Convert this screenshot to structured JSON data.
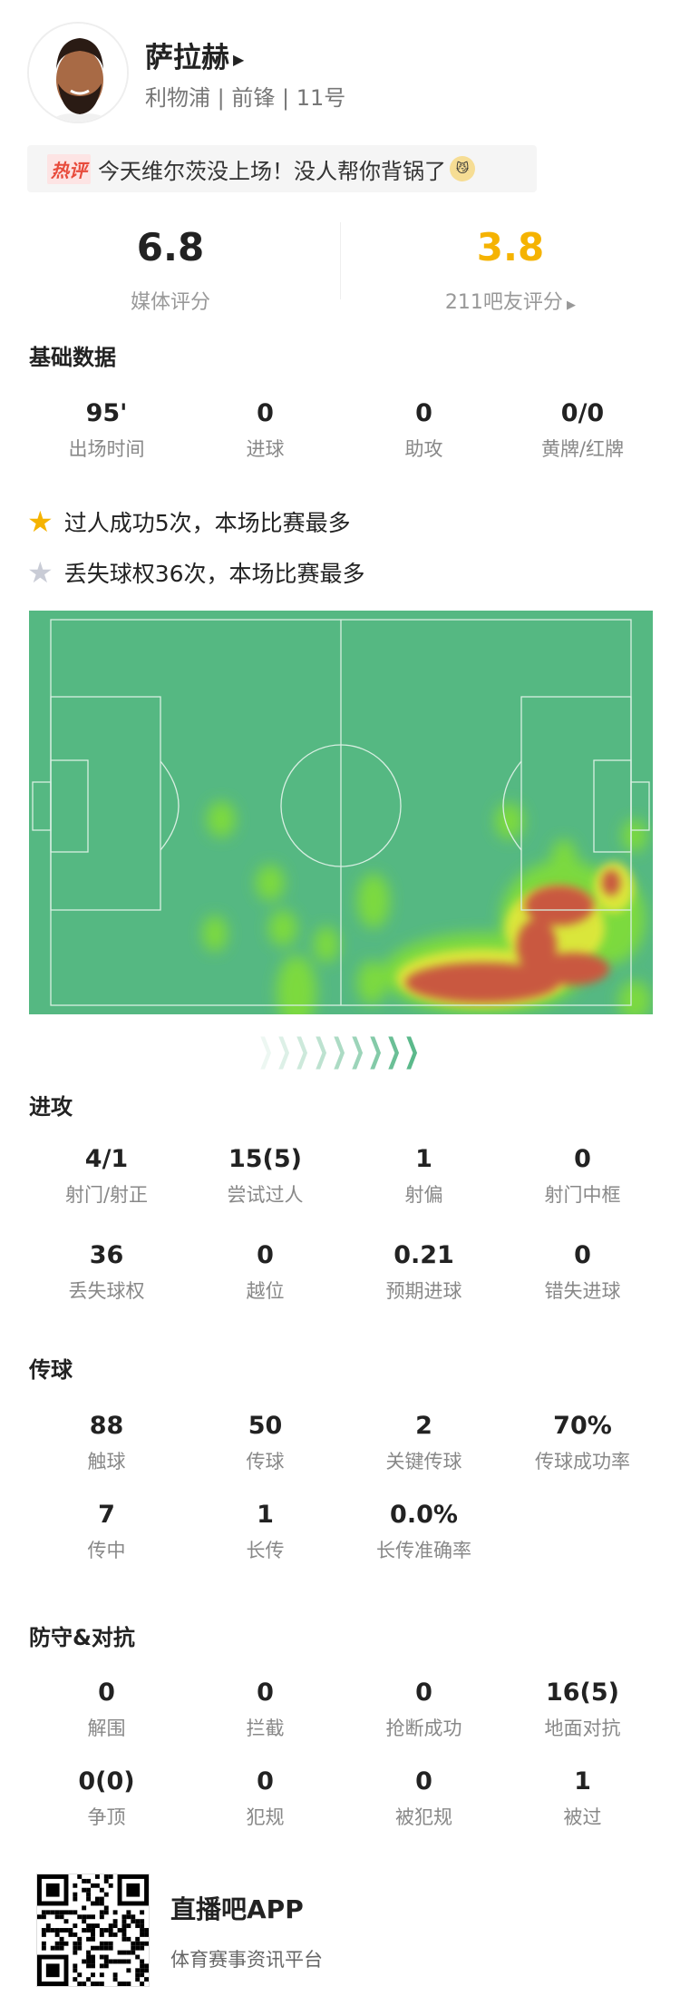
{
  "player": {
    "name": "萨拉赫",
    "team": "利物浦",
    "position": "前锋",
    "number": "11号"
  },
  "hot_comment": {
    "tag": "热评",
    "text": "今天维尔茨没上场！没人帮你背锅了"
  },
  "ratings": {
    "media_value": "6.8",
    "media_label": "媒体评分",
    "fan_value": "3.8",
    "fan_label": "211吧友评分",
    "fan_color": "#f5b301"
  },
  "basic": {
    "title": "基础数据",
    "items": [
      {
        "v": "95'",
        "l": "出场时间"
      },
      {
        "v": "0",
        "l": "进球"
      },
      {
        "v": "0",
        "l": "助攻"
      },
      {
        "v": "0/0",
        "l": "黄牌/红牌"
      }
    ]
  },
  "highlights": [
    {
      "icon": "gold-star-icon",
      "text": "过人成功5次，本场比赛最多"
    },
    {
      "icon": "silver-star-icon",
      "text": "丢失球权36次，本场比赛最多"
    }
  ],
  "attack": {
    "title": "进攻",
    "rows": [
      [
        {
          "v": "4/1",
          "l": "射门/射正"
        },
        {
          "v": "15(5)",
          "l": "尝试过人"
        },
        {
          "v": "1",
          "l": "射偏"
        },
        {
          "v": "0",
          "l": "射门中框"
        }
      ],
      [
        {
          "v": "36",
          "l": "丢失球权"
        },
        {
          "v": "0",
          "l": "越位"
        },
        {
          "v": "0.21",
          "l": "预期进球"
        },
        {
          "v": "0",
          "l": "错失进球"
        }
      ]
    ]
  },
  "passing": {
    "title": "传球",
    "rows": [
      [
        {
          "v": "88",
          "l": "触球"
        },
        {
          "v": "50",
          "l": "传球"
        },
        {
          "v": "2",
          "l": "关键传球"
        },
        {
          "v": "70%",
          "l": "传球成功率"
        }
      ],
      [
        {
          "v": "7",
          "l": "传中"
        },
        {
          "v": "1",
          "l": "长传"
        },
        {
          "v": "0.0%",
          "l": "长传准确率"
        }
      ]
    ]
  },
  "defense": {
    "title": "防守&对抗",
    "rows": [
      [
        {
          "v": "0",
          "l": "解围"
        },
        {
          "v": "0",
          "l": "拦截"
        },
        {
          "v": "0",
          "l": "抢断成功"
        },
        {
          "v": "16(5)",
          "l": "地面对抗"
        }
      ],
      [
        {
          "v": "0(0)",
          "l": "争顶"
        },
        {
          "v": "0",
          "l": "犯规"
        },
        {
          "v": "0",
          "l": "被犯规"
        },
        {
          "v": "1",
          "l": "被过"
        }
      ]
    ]
  },
  "footer": {
    "app": "直播吧APP",
    "sub": "体育赛事资讯平台"
  }
}
